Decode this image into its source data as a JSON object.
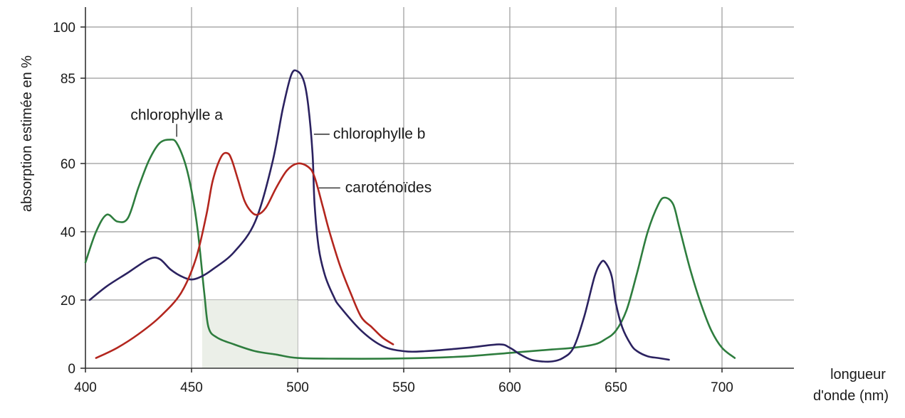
{
  "chart_data": {
    "type": "line",
    "xlabel": "longueur d'onde (nm)",
    "xlabel_lines": [
      "longueur",
      "d'onde (nm)"
    ],
    "ylabel": "absorption estimée en %",
    "xlim": [
      400,
      710
    ],
    "ylim": [
      0,
      100
    ],
    "xticks": [
      400,
      450,
      500,
      550,
      600,
      650,
      700
    ],
    "yticks": [
      0,
      20,
      40,
      60,
      85,
      100
    ],
    "grid": true,
    "series": [
      {
        "name": "chlorophylle a",
        "color": "#2e7d3e",
        "x": [
          400,
          405,
          410,
          415,
          420,
          425,
          430,
          435,
          440,
          443,
          447,
          450,
          453,
          456,
          458,
          462,
          470,
          480,
          490,
          500,
          520,
          540,
          560,
          580,
          600,
          620,
          630,
          640,
          645,
          650,
          655,
          660,
          665,
          670,
          673,
          677,
          680,
          685,
          690,
          695,
          700,
          706
        ],
        "y": [
          31,
          40,
          45,
          43,
          44,
          53,
          61,
          66,
          67,
          66,
          60,
          52,
          40,
          22,
          12,
          9,
          7,
          5,
          4,
          3,
          2.8,
          2.8,
          3,
          3.5,
          4.5,
          5.5,
          6,
          7,
          8.5,
          11,
          17,
          28,
          40,
          48,
          50,
          48,
          41,
          29,
          19,
          11,
          6,
          3
        ]
      },
      {
        "name": "chlorophylle b",
        "color": "#2b2260",
        "x": [
          402,
          410,
          420,
          430,
          435,
          440,
          445,
          450,
          455,
          460,
          470,
          480,
          488,
          493,
          497,
          500,
          503,
          505,
          507,
          508,
          510,
          513,
          517,
          520,
          530,
          540,
          550,
          560,
          580,
          595,
          600,
          605,
          610,
          615,
          620,
          625,
          630,
          635,
          640,
          643,
          645,
          648,
          650,
          653,
          657,
          660,
          665,
          670,
          675
        ],
        "y": [
          20,
          24,
          28,
          32,
          32,
          29,
          27,
          26,
          27,
          29,
          34,
          43,
          60,
          76,
          86,
          87,
          84,
          77,
          63,
          48,
          35,
          27,
          21,
          18,
          11,
          6.5,
          5,
          5,
          6,
          7,
          6,
          4,
          2.5,
          2,
          2,
          3,
          6,
          15,
          27,
          31,
          31,
          27,
          19,
          12,
          7,
          5,
          3.5,
          3,
          2.5
        ]
      },
      {
        "name": "caroténoïdes",
        "color": "#b3261e",
        "x": [
          405,
          415,
          425,
          435,
          445,
          452,
          457,
          460,
          464,
          467,
          469,
          472,
          475,
          478,
          481,
          485,
          490,
          495,
          500,
          505,
          508,
          512,
          515,
          520,
          525,
          530,
          535,
          540,
          545
        ],
        "y": [
          3,
          6,
          10,
          15,
          22,
          32,
          45,
          55,
          62,
          63,
          61,
          55,
          49,
          46,
          45,
          47,
          53,
          58,
          60,
          59,
          56,
          47,
          40,
          30,
          22,
          15,
          12,
          9,
          7
        ]
      }
    ],
    "annotations": [
      {
        "text": "chlorophylle a",
        "series": "chlorophylle a",
        "x": 443,
        "y": 67
      },
      {
        "text": "chlorophylle b",
        "series": "chlorophylle b",
        "x": 507,
        "y": 69
      },
      {
        "text": "caroténoïdes",
        "series": "caroténoïdes",
        "x": 510,
        "y": 52
      }
    ],
    "shaded_region": {
      "x": [
        455,
        500
      ],
      "y": [
        0,
        20
      ]
    }
  }
}
